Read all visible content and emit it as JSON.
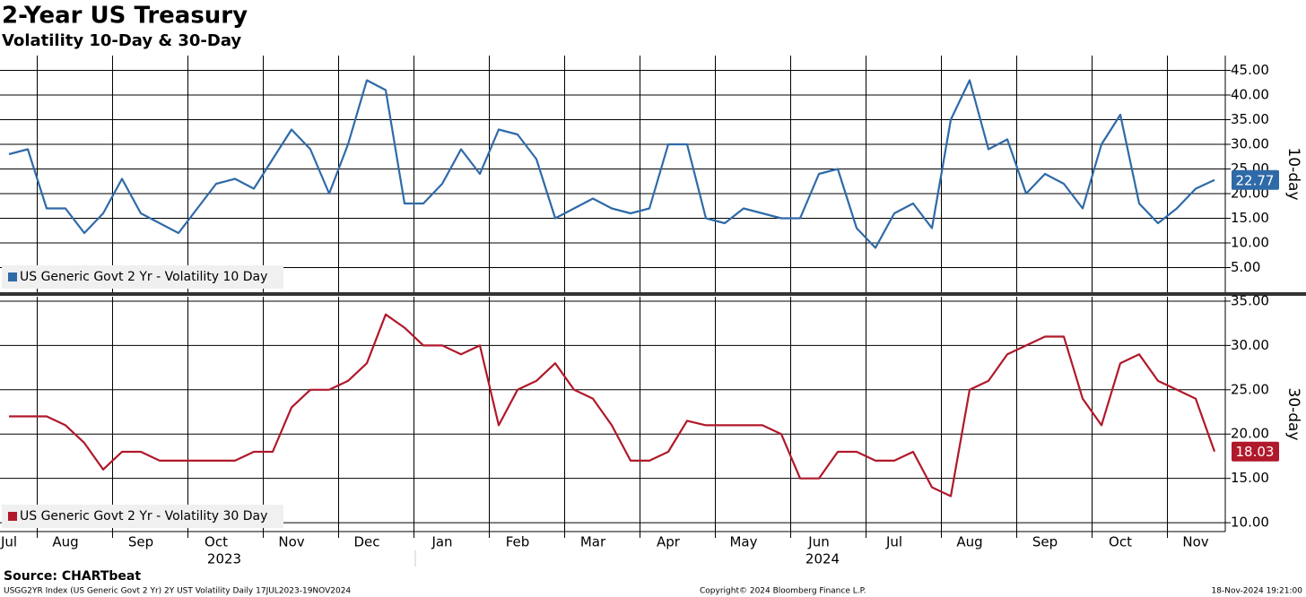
{
  "header": {
    "title": "2-Year US Treasury",
    "subtitle": "Volatility 10-Day & 30-Day"
  },
  "chart_data": [
    {
      "type": "line",
      "axis_title": "10-day",
      "ylim": [
        0,
        48
      ],
      "yticks": [
        {
          "value": 5,
          "label": "5.00"
        },
        {
          "value": 10,
          "label": "10.00"
        },
        {
          "value": 15,
          "label": "15.00"
        },
        {
          "value": 20,
          "label": "20.00"
        },
        {
          "value": 25,
          "label": "25.00"
        },
        {
          "value": 30,
          "label": "30.00"
        },
        {
          "value": 35,
          "label": "35.00"
        },
        {
          "value": 40,
          "label": "40.00"
        },
        {
          "value": 45,
          "label": "45.00"
        }
      ],
      "grid": true,
      "series": [
        {
          "name": "US Generic Govt 2 Yr - Volatility 10 Day",
          "color": "#2f6aa8",
          "last_label": "22.77",
          "values": [
            28,
            29,
            17,
            17,
            12,
            16,
            23,
            16,
            14,
            12,
            17,
            22,
            23,
            21,
            27,
            33,
            29,
            20,
            30,
            43,
            41,
            18,
            18,
            22,
            29,
            24,
            33,
            32,
            27,
            15,
            17,
            19,
            17,
            16,
            17,
            30,
            30,
            15,
            14,
            17,
            16,
            15,
            15,
            24,
            25,
            13,
            9,
            16,
            18,
            13,
            35,
            43,
            29,
            31,
            20,
            24,
            22,
            17,
            30,
            36,
            18,
            14,
            17,
            21,
            22.77
          ]
        }
      ]
    },
    {
      "type": "line",
      "axis_title": "30-day",
      "ylim": [
        9,
        35.5
      ],
      "yticks": [
        {
          "value": 10,
          "label": "10.00"
        },
        {
          "value": 15,
          "label": "15.00"
        },
        {
          "value": 20,
          "label": "20.00"
        },
        {
          "value": 25,
          "label": "25.00"
        },
        {
          "value": 30,
          "label": "30.00"
        },
        {
          "value": 35,
          "label": "35.00"
        }
      ],
      "grid": true,
      "categories": [
        "Jul",
        null,
        null,
        "Aug",
        null,
        null,
        null,
        "Sep",
        null,
        null,
        null,
        "Oct",
        null,
        null,
        null,
        "Nov",
        null,
        null,
        null,
        "Dec",
        null,
        null,
        null,
        "Jan",
        null,
        null,
        null,
        "Feb",
        null,
        null,
        null,
        "Mar",
        null,
        null,
        null,
        "Apr",
        null,
        null,
        null,
        "May",
        null,
        null,
        null,
        "Jun",
        null,
        null,
        null,
        "Jul",
        null,
        null,
        null,
        "Aug",
        null,
        null,
        null,
        "Sep",
        null,
        null,
        null,
        "Oct",
        null,
        null,
        null,
        "Nov",
        null
      ],
      "years": [
        "2023",
        "2024"
      ],
      "series": [
        {
          "name": "US Generic Govt 2 Yr - Volatility 30 Day",
          "color": "#b0192b",
          "last_label": "18.03",
          "values": [
            22,
            22,
            22,
            21,
            19,
            16,
            18,
            18,
            17,
            17,
            17,
            17,
            17,
            18,
            18,
            23,
            25,
            25,
            26,
            28,
            33.5,
            32,
            30,
            30,
            29,
            30,
            21,
            25,
            26,
            28,
            25,
            24,
            21,
            17,
            17,
            18,
            21.5,
            21,
            21,
            21,
            21,
            20,
            15,
            15,
            18,
            18,
            17,
            17,
            18,
            14,
            13,
            25,
            26,
            29,
            30,
            31,
            31,
            24,
            21,
            28,
            29,
            26,
            25,
            24,
            18.03
          ]
        }
      ]
    }
  ],
  "footer": {
    "source": "Source: CHARTbeat",
    "description": "USGG2YR Index (US Generic Govt 2 Yr) 2Y UST Volatility  Daily 17JUL2023-19NOV2024",
    "copyright": "Copyright© 2024 Bloomberg Finance L.P.",
    "timestamp": "18-Nov-2024 19:21:00"
  }
}
